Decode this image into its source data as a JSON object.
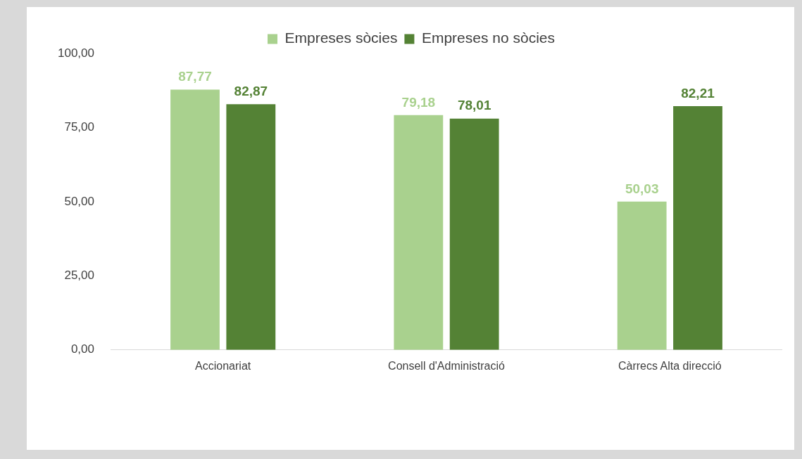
{
  "chart_data": {
    "type": "bar",
    "categories": [
      "Accionariat",
      "Consell d'Administració",
      "Càrrecs Alta direcció"
    ],
    "series": [
      {
        "name": "Empreses sòcies",
        "color": "#a9d18e",
        "values": [
          87.77,
          79.18,
          50.03
        ],
        "value_labels": [
          "87,77",
          "79,18",
          "50,03"
        ]
      },
      {
        "name": "Empreses no sòcies",
        "color": "#548235",
        "values": [
          82.87,
          78.01,
          82.21
        ],
        "value_labels": [
          "82,87",
          "78,01",
          "82,21"
        ]
      }
    ],
    "ylim": [
      0,
      100
    ],
    "yticks": [
      {
        "value": 0,
        "label": "0,00"
      },
      {
        "value": 25,
        "label": "25,00"
      },
      {
        "value": 50,
        "label": "50,00"
      },
      {
        "value": 75,
        "label": "75,00"
      },
      {
        "value": 100,
        "label": "100,00"
      }
    ],
    "grid": false,
    "legend": "top"
  }
}
